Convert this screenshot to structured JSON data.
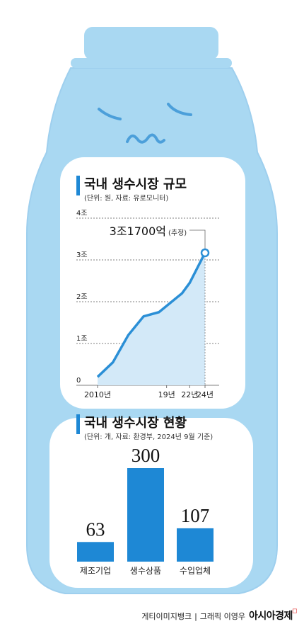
{
  "colors": {
    "bottle_fill": "#a9d8f2",
    "bottle_outline": "#9ecfee",
    "panel": "#ffffff",
    "line_accent": "#2b8fd6",
    "area_fill": "#d3e9f8",
    "bar_fill": "#1e88d5",
    "title_bar": "#1e88d5",
    "face": "#4c9fda"
  },
  "chart_data": [
    {
      "type": "area",
      "title": "국내 생수시장 규모",
      "subtitle": "(단위: 원, 자료: 유로모니터)",
      "y_ticks": [
        "0",
        "1조",
        "2조",
        "3조",
        "4조"
      ],
      "ylim": [
        0,
        4
      ],
      "x_ticks": [
        "2010년",
        "19년",
        "22년",
        "24년"
      ],
      "x_tick_values": [
        2010,
        2019,
        2022,
        2024
      ],
      "xlim": [
        2010,
        2024
      ],
      "grid": true,
      "x": [
        2010,
        2012,
        2014,
        2016,
        2018,
        2019,
        2021,
        2022,
        2024
      ],
      "values": [
        0.2,
        0.55,
        1.2,
        1.65,
        1.75,
        1.9,
        2.2,
        2.45,
        3.17
      ],
      "annotation": {
        "value": "3조1700억",
        "note": "(추정)"
      }
    },
    {
      "type": "bar",
      "title": "국내 생수시장 현황",
      "subtitle": "(단위: 개, 자료: 환경부, 2024년 9월 기준)",
      "categories": [
        "제조기업",
        "생수상품",
        "수입업체"
      ],
      "values": [
        63,
        300,
        107
      ],
      "value_labels": [
        "63",
        "300",
        "107"
      ]
    }
  ],
  "credit": {
    "photo": "게티이미지뱅크",
    "separator": "|",
    "graphic": "그래픽 이영우",
    "brand": "아시아경제",
    "brand_mark": "◻"
  }
}
